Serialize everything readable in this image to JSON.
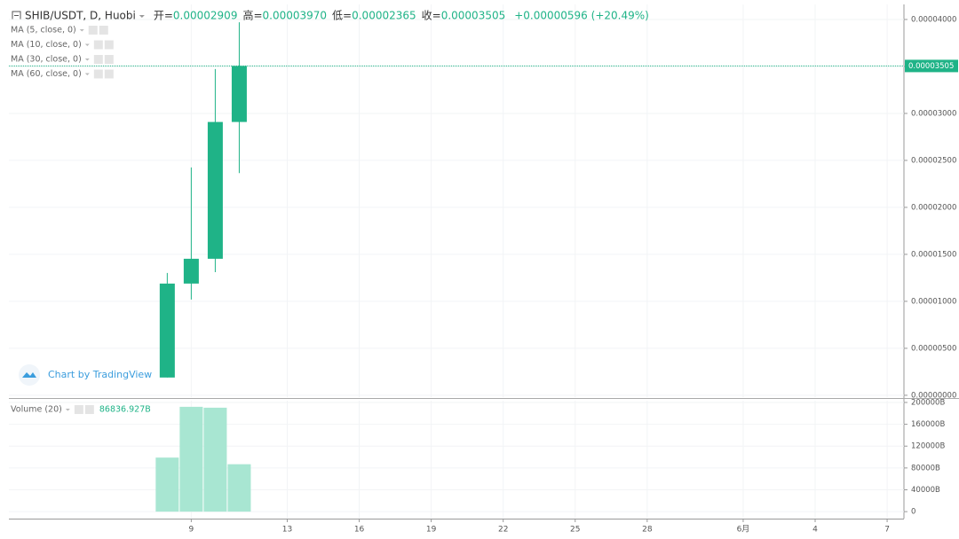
{
  "chart_data": [
    {
      "type": "candlestick",
      "title": "SHIB/USDT, D, Huobi",
      "header": [
        {
          "label": "开=",
          "value": "0.00002909"
        },
        {
          "label": "高=",
          "value": "0.00003970"
        },
        {
          "label": "低=",
          "value": "0.00002365"
        },
        {
          "label": "收=",
          "value": "0.00003505"
        }
      ],
      "change": "+0.00000596 (+20.49%)",
      "indicators": [
        "MA (5, close, 0)",
        "MA (10, close, 0)",
        "MA (30, close, 0)",
        "MA (60, close, 0)"
      ],
      "watermark": "Chart by TradingView",
      "x": [
        8,
        9,
        10,
        11
      ],
      "open": [
        1.89e-06,
        1.189e-05,
        1.453e-05,
        2.909e-05
      ],
      "high": [
        1.302e-05,
        2.425e-05,
        3.472e-05,
        3.97e-05
      ],
      "low": [
        1.89e-06,
        1.019e-05,
        1.311e-05,
        2.365e-05
      ],
      "close": [
        1.189e-05,
        1.453e-05,
        2.909e-05,
        3.505e-05
      ],
      "color": "#1fb387",
      "last_price_label": "0.00003505",
      "xlim": [
        1.4,
        38.7
      ],
      "xticks": [
        9,
        13,
        16,
        19,
        22,
        25,
        28,
        {
          "value": 32,
          "label": "6月"
        },
        {
          "value": 35,
          "label": "4"
        },
        {
          "value": 38,
          "label": "7"
        }
      ],
      "ylim": [
        -2e-07,
        4.16e-05
      ],
      "yticks": [
        {
          "value": 0,
          "label": "0.00000000"
        },
        {
          "value": 5e-06,
          "label": "0.00000500"
        },
        {
          "value": 1e-05,
          "label": "0.00001000"
        },
        {
          "value": 1.5e-05,
          "label": "0.00001500"
        },
        {
          "value": 2e-05,
          "label": "0.00002000"
        },
        {
          "value": 2.5e-05,
          "label": "0.00002500"
        },
        {
          "value": 3e-05,
          "label": "0.00003000"
        },
        {
          "value": 3.5e-05,
          "label": "0.00003500"
        },
        {
          "value": 4e-05,
          "label": "0.00004000"
        }
      ],
      "grid": true
    },
    {
      "type": "bar",
      "title": "Volume (20)",
      "last_value_label": "86836.927B",
      "x": [
        8,
        9,
        10,
        11
      ],
      "values": [
        99000,
        192000,
        190400,
        86836.927
      ],
      "color": "#a8e6d2",
      "xlim": [
        1.4,
        38.7
      ],
      "ylim": [
        -12800,
        203200
      ],
      "yticks": [
        0,
        {
          "value": 40000,
          "label": "40000B"
        },
        {
          "value": 80000,
          "label": "80000B"
        },
        {
          "value": 120000,
          "label": "120000B"
        },
        {
          "value": 160000,
          "label": "160000B"
        },
        {
          "value": 200000,
          "label": "200000B"
        }
      ],
      "grid": true
    }
  ]
}
